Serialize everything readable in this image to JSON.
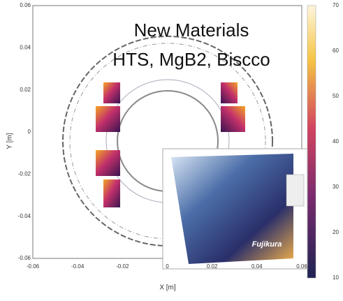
{
  "overlay": {
    "line1": "New Materials",
    "line2": "HTS, MgB2, Biscco"
  },
  "plot": {
    "x_label": "X [m]",
    "y_label": "Y [m]",
    "x_ticks": [
      "-0.06",
      "-0.04",
      "-0.02",
      "0",
      "0.02",
      "0.04",
      "0.06"
    ],
    "y_ticks": [
      "0.06",
      "0.04",
      "0.02",
      "0",
      "-0.02",
      "-0.04",
      "-0.06"
    ],
    "colorbar_ticks": [
      "70",
      "60",
      "50",
      "40",
      "30",
      "20",
      "10"
    ]
  },
  "inset": {
    "brand": "Fujikura"
  }
}
